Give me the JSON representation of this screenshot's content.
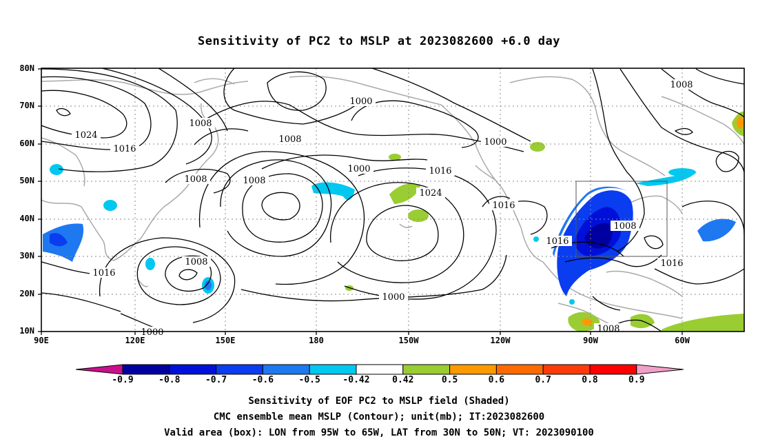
{
  "title": "Sensitivity of PC2 to MSLP at 2023082600 +6.0 day",
  "axes": {
    "lat_ticks": [
      "80N",
      "70N",
      "60N",
      "50N",
      "40N",
      "30N",
      "20N",
      "10N"
    ],
    "lon_ticks": [
      "90E",
      "120E",
      "150E",
      "180",
      "150W",
      "120W",
      "90W",
      "60W"
    ]
  },
  "contour_labels": [
    "1024",
    "1016",
    "1008",
    "1008",
    "1000",
    "1008",
    "1000",
    "1008",
    "1016",
    "1000",
    "1024",
    "1016",
    "1016",
    "1008",
    "1000",
    "1000",
    "1016",
    "1008",
    "1016",
    "1008",
    "1008"
  ],
  "valid_box": {
    "lon_from": "95W",
    "lon_to": "65W",
    "lat_from": "30N",
    "lat_to": "50N"
  },
  "colorbar": {
    "labels": [
      "-0.9",
      "-0.8",
      "-0.7",
      "-0.6",
      "-0.5",
      "-0.42",
      "0.42",
      "0.5",
      "0.6",
      "0.7",
      "0.8",
      "0.9"
    ],
    "colors": [
      "#0000a0",
      "#0010d8",
      "#0a3cf0",
      "#1e78f0",
      "#00c8f0",
      "#ffffff",
      "#9acd32",
      "#ff9900",
      "#ff6a00",
      "#ff3a0a",
      "#ff0000"
    ],
    "left_tip_color": "#c8108c",
    "right_tip_color": "#f0a0c8"
  },
  "captions": [
    "Sensitivity of EOF PC2 to MSLP field (Shaded)",
    "CMC ensemble mean MSLP (Contour); unit(mb); IT:2023082600",
    "Valid area (box): LON from 95W to 65W, LAT from 30N to 50N; VT: 2023090100"
  ]
}
